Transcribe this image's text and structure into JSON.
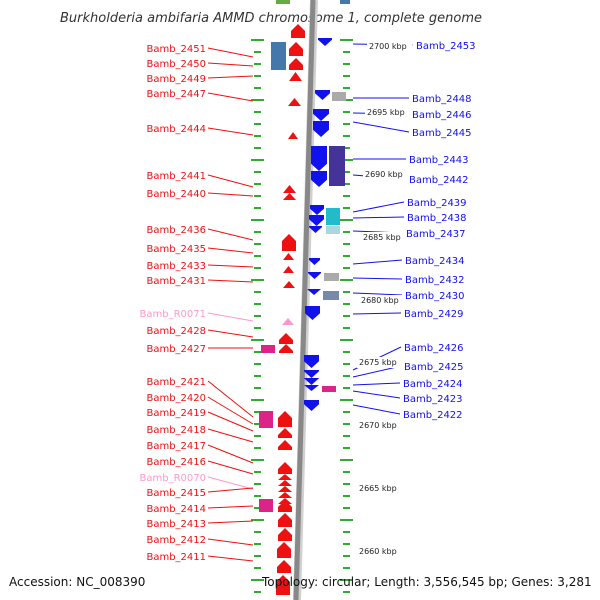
{
  "title": "Burkholderia ambifaria AMMD chromosome 1, complete genome",
  "accession": "Accession: NC_008390",
  "topology": "Topology: circular; Length: 3,556,545 bp; Genes: 3,281",
  "colors": {
    "forward": "#ee1111",
    "reverse": "#1111ee",
    "rna": "#ff99cc",
    "pink": "#dd2288",
    "steel": "#4477aa",
    "purple": "#443399",
    "cyan": "#22bbcc",
    "gray": "#aaaaaa",
    "backbone": "#888888"
  },
  "scale_labels": [
    "2700 kbp",
    "2695 kbp",
    "2690 kbp",
    "2685 kbp",
    "2680 kbp",
    "2675 kbp",
    "2670 kbp",
    "2665 kbp",
    "2660 kbp"
  ],
  "left_genes": [
    "Bamb_2451",
    "Bamb_2450",
    "Bamb_2449",
    "Bamb_2447",
    "Bamb_2444",
    "Bamb_2441",
    "Bamb_2440",
    "Bamb_2436",
    "Bamb_2435",
    "Bamb_2433",
    "Bamb_2431",
    "Bamb_R0071",
    "Bamb_2428",
    "Bamb_2427",
    "Bamb_2421",
    "Bamb_2420",
    "Bamb_2419",
    "Bamb_2418",
    "Bamb_2417",
    "Bamb_2416",
    "Bamb_R0070",
    "Bamb_2415",
    "Bamb_2414",
    "Bamb_2413",
    "Bamb_2412",
    "Bamb_2411"
  ],
  "right_genes": [
    "Bamb_2453",
    "Bamb_2448",
    "Bamb_2446",
    "Bamb_2445",
    "Bamb_2443",
    "Bamb_2442",
    "Bamb_2439",
    "Bamb_2438",
    "Bamb_2437",
    "Bamb_2434",
    "Bamb_2432",
    "Bamb_2430",
    "Bamb_2429",
    "Bamb_2426",
    "Bamb_2425",
    "Bamb_2424",
    "Bamb_2423",
    "Bamb_2422"
  ]
}
